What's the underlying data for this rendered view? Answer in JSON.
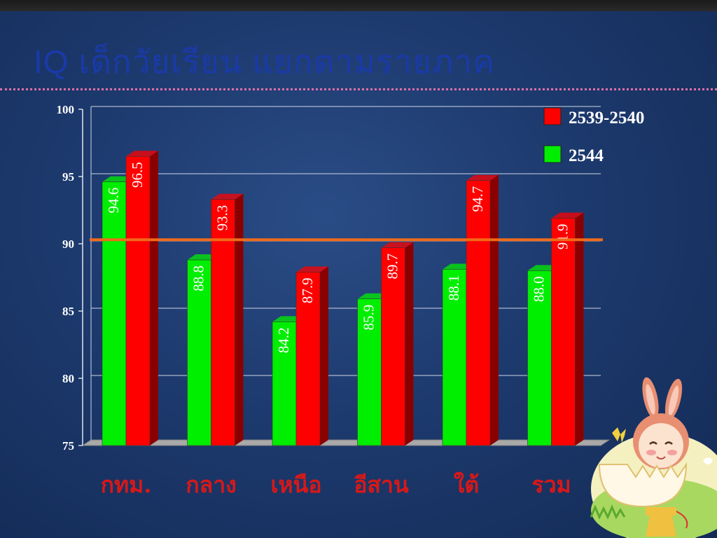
{
  "page": {
    "title": "IQ  เด็กวัยเรียน  แยกตามรายภาค"
  },
  "chart_data": {
    "type": "bar",
    "categories": [
      "กทม.",
      "กลาง",
      "เหนือ",
      "อีสาน",
      "ใต้",
      "รวม"
    ],
    "series": [
      {
        "name": "2544",
        "color": "#00ee00",
        "side_color": "#00a800",
        "values": [
          94.6,
          88.8,
          84.2,
          85.9,
          88.1,
          88.0
        ],
        "labels": [
          "94.6",
          "88.8",
          "84.2",
          "85.9",
          "88.1",
          "88.0"
        ]
      },
      {
        "name": "2539-2540",
        "color": "#ff0000",
        "side_color": "#8a0000",
        "values": [
          96.5,
          93.3,
          87.9,
          89.7,
          94.7,
          91.9
        ],
        "labels": [
          "96.5",
          "93.3",
          "87.9",
          "89.7",
          "94.7",
          "91.9"
        ]
      }
    ],
    "legend_order": [
      1,
      0
    ],
    "ylim": [
      75,
      100
    ],
    "yticks": [
      "75",
      "80",
      "85",
      "90",
      "95",
      "100"
    ],
    "reference_line": {
      "value": 90.3,
      "color": "#f06a1a"
    },
    "grid": true,
    "legend_position": "top-right",
    "xlabel": "",
    "ylabel": ""
  }
}
